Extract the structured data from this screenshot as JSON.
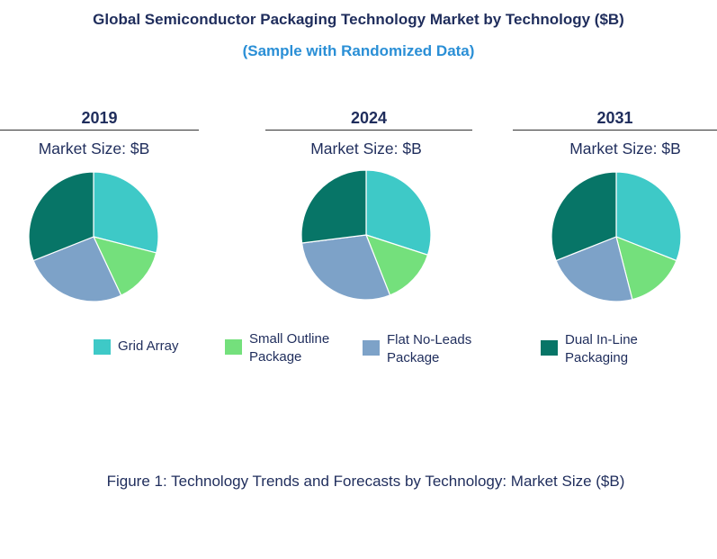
{
  "title": "Global Semiconductor Packaging Technology Market by Technology ($B)",
  "subtitle": "(Sample with Randomized Data)",
  "caption": "Figure 1: Technology Trends and Forecasts by Technology: Market Size ($B)",
  "colors": {
    "Grid Array": "#3ec9c7",
    "Small Outline Package": "#74e07c",
    "Flat No-Leads Package": "#7da2c8",
    "Dual In-Line Packaging": "#077567"
  },
  "legend": [
    {
      "line1": "Grid Array",
      "line2": "",
      "color": "#3ec9c7"
    },
    {
      "line1": "Small Outline",
      "line2": "Package",
      "color": "#74e07c"
    },
    {
      "line1": "Flat No-Leads",
      "line2": "Package",
      "color": "#7da2c8"
    },
    {
      "line1": "Dual In-Line",
      "line2": "Packaging",
      "color": "#077567"
    }
  ],
  "chart_data": [
    {
      "type": "pie",
      "title": "2019",
      "subtitle": "Market Size: $B",
      "categories": [
        "Grid Array",
        "Small Outline Package",
        "Flat No-Leads Package",
        "Dual In-Line Packaging"
      ],
      "values": [
        29,
        14,
        26,
        31
      ]
    },
    {
      "type": "pie",
      "title": "2024",
      "subtitle": "Market Size: $B",
      "categories": [
        "Grid Array",
        "Small Outline Package",
        "Flat No-Leads Package",
        "Dual In-Line Packaging"
      ],
      "values": [
        30,
        14,
        29,
        27
      ]
    },
    {
      "type": "pie",
      "title": "2031",
      "subtitle": "Market Size: $B",
      "categories": [
        "Grid Array",
        "Small Outline Package",
        "Flat No-Leads Package",
        "Dual In-Line Packaging"
      ],
      "values": [
        31,
        15,
        23,
        31
      ]
    }
  ]
}
